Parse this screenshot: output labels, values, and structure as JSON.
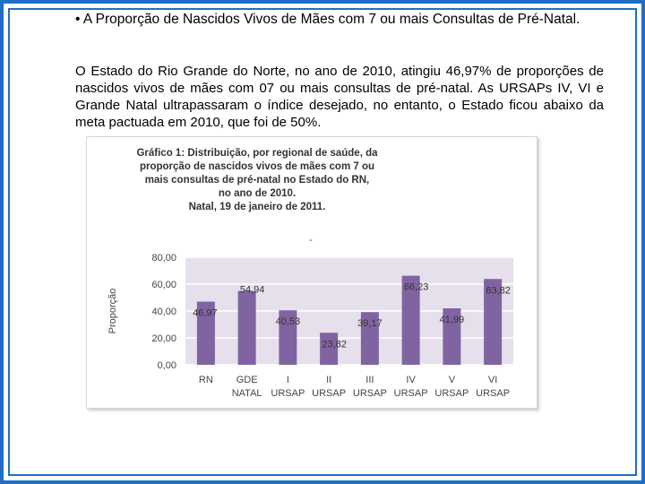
{
  "heading": "• A Proporção de Nascidos Vivos de Mães com 7 ou mais Consultas de Pré-Natal.",
  "paragraph": "O Estado do Rio Grande do Norte, no ano de 2010, atingiu 46,97% de proporções de nascidos vivos de mães com 07 ou mais consultas de pré-natal. As URSAPs IV, VI e Grande Natal ultrapassaram o índice desejado, no entanto, o Estado ficou abaixo da meta pactuada  em 2010, que foi de 50%.",
  "colors": {
    "frame": "#1f6fc6",
    "plot_area": "#e6e0ec",
    "bar": "#8064a2"
  },
  "chart_data": {
    "type": "bar",
    "title_lines": [
      "Gráfico 1: Distribuição, por regional de saúde, da",
      "proporção de nascidos vivos de mães com 7 ou",
      "mais consultas de pré-natal no Estado do RN,",
      "no ano de 2010.",
      "Natal, 19 de janeiro de 2011."
    ],
    "ylabel": "Proporção",
    "xlabel": "",
    "ylim": [
      0,
      80
    ],
    "yticks": [
      "0,00",
      "20,00",
      "40,00",
      "60,00",
      "80,00"
    ],
    "ytick_values": [
      0,
      20,
      40,
      60,
      80
    ],
    "categories": [
      [
        "RN"
      ],
      [
        "GDE",
        "NATAL"
      ],
      [
        "I",
        "URSAP"
      ],
      [
        "II",
        "URSAP"
      ],
      [
        "III",
        "URSAP"
      ],
      [
        "IV",
        "URSAP"
      ],
      [
        "V",
        "URSAP"
      ],
      [
        "VI",
        "URSAP"
      ]
    ],
    "values": [
      46.97,
      54.94,
      40.53,
      23.82,
      39.17,
      66.23,
      41.99,
      63.82
    ],
    "value_labels": [
      "46,97",
      "54,94",
      "40,53",
      "23,82",
      "39,17",
      "66,23",
      "41,99",
      "63,82"
    ],
    "legend_marker": "-"
  }
}
